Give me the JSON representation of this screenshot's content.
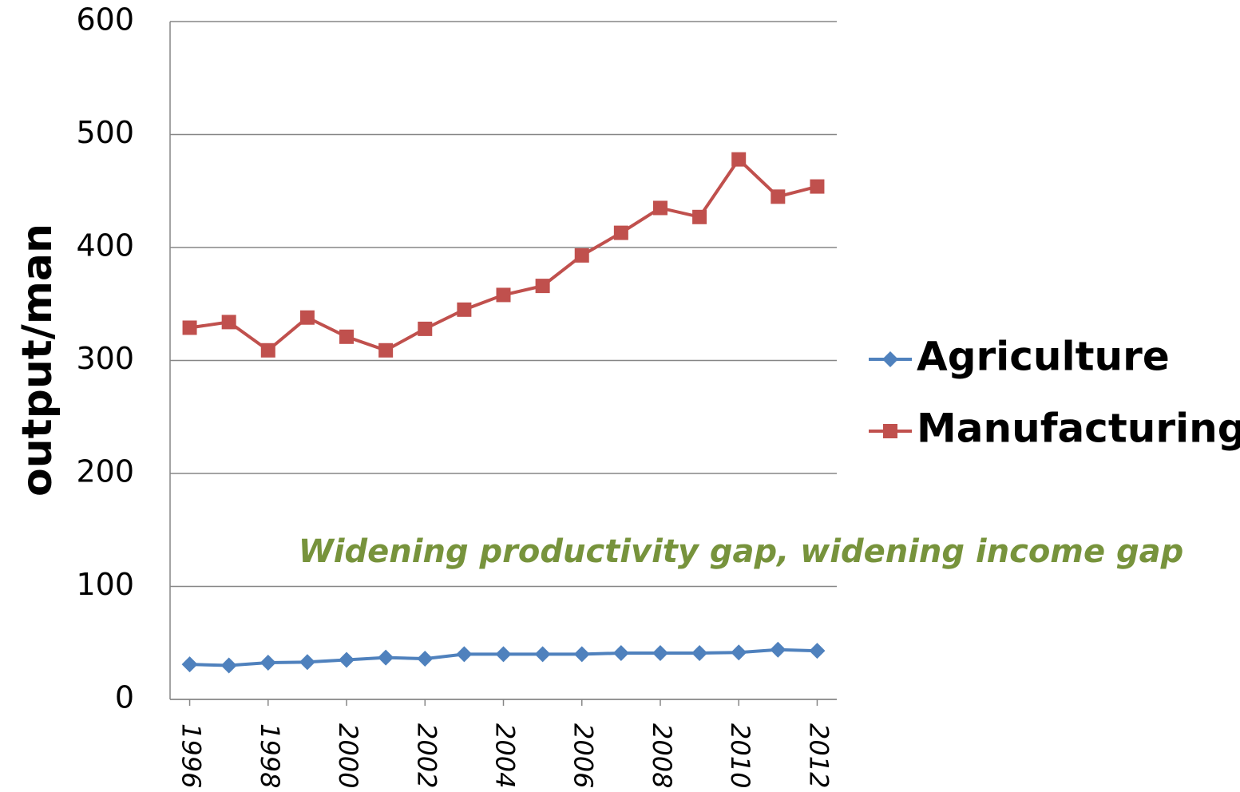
{
  "chart_data": {
    "type": "line",
    "y_label": "output/man",
    "annotation": "Widening productivity gap, widening income gap",
    "x": [
      1996,
      1997,
      1998,
      1999,
      2000,
      2001,
      2002,
      2003,
      2004,
      2005,
      2006,
      2007,
      2008,
      2009,
      2010,
      2011,
      2012
    ],
    "xlim": [
      1995.5,
      2012.5
    ],
    "xticks": [
      1996,
      1998,
      2000,
      2002,
      2004,
      2006,
      2008,
      2010,
      2012
    ],
    "ylim": [
      0,
      600
    ],
    "yticks": [
      0,
      100,
      200,
      300,
      400,
      500,
      600
    ],
    "grid": true,
    "legend": "right",
    "series": [
      {
        "name": "Agriculture",
        "color": "#4f81bd",
        "marker": "diamond",
        "values": [
          31,
          30,
          32.5,
          33,
          35,
          37,
          36,
          40,
          40,
          40,
          40,
          41,
          41,
          41,
          41.5,
          44,
          43
        ]
      },
      {
        "name": "Manufacturing",
        "color": "#c0504d",
        "marker": "square",
        "values": [
          329,
          334,
          309,
          338,
          321,
          309,
          328,
          345,
          358,
          366,
          393,
          413,
          435,
          427,
          478,
          445,
          454
        ]
      }
    ]
  }
}
